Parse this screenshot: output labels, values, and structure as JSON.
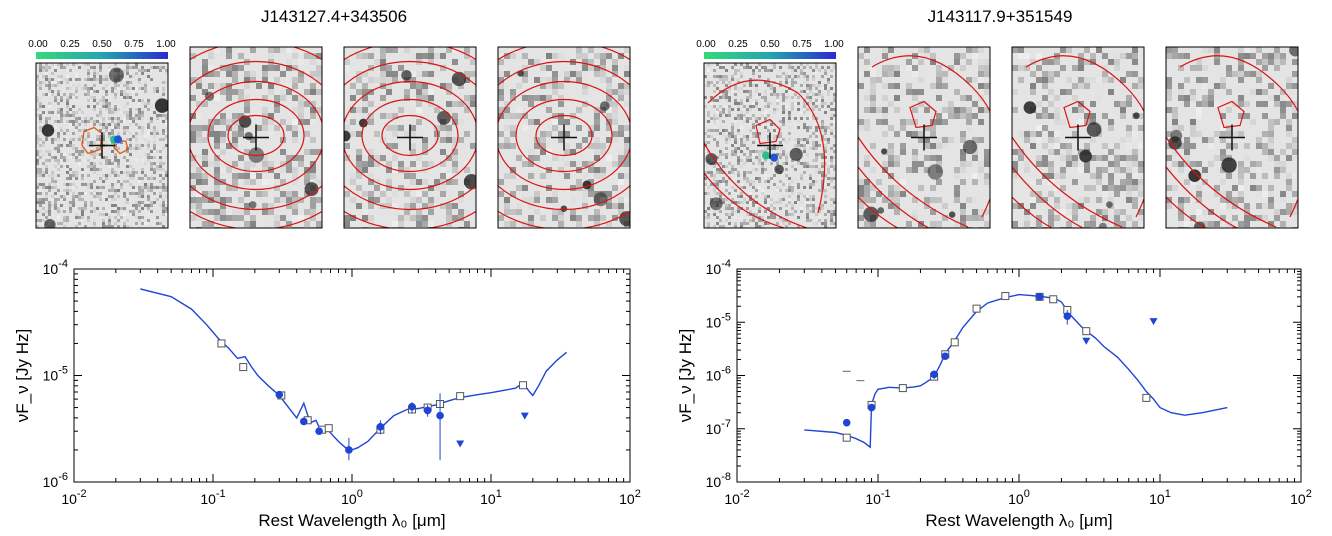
{
  "figure": {
    "panels": [
      {
        "id": "left",
        "title": "J143127.4+343506",
        "colorbar_ticks": [
          "0.00",
          "0.25",
          "0.50",
          "0.75",
          "1.00"
        ],
        "thumbnail_count": 4
      },
      {
        "id": "right",
        "title": "J143117.9+351549",
        "colorbar_ticks": [
          "0.00",
          "0.25",
          "0.50",
          "0.75",
          "1.00"
        ],
        "thumbnail_count": 4
      }
    ]
  },
  "chart_data": [
    {
      "type": "scatter",
      "title": "",
      "xlabel": "Rest Wavelength λ₀ [μm]",
      "ylabel": "νF_ν [Jy Hz]",
      "x_scale": "log",
      "y_scale": "log",
      "xlim": [
        0.01,
        100
      ],
      "ylim": [
        1e-06,
        0.0001
      ],
      "x_ticks": [
        "10^-2",
        "10^-1",
        "10^0",
        "10^1",
        "10^2"
      ],
      "y_ticks": [
        "10^-6",
        "10^-5",
        "10^-4"
      ],
      "model_curve": {
        "x": [
          0.03,
          0.05,
          0.07,
          0.09,
          0.11,
          0.13,
          0.15,
          0.17,
          0.19,
          0.21,
          0.25,
          0.3,
          0.35,
          0.4,
          0.45,
          0.5,
          0.55,
          0.6,
          0.65,
          0.7,
          0.8,
          0.9,
          1.0,
          1.1,
          1.3,
          1.6,
          2.0,
          2.5,
          3.0,
          4.0,
          5.0,
          6.0,
          8.0,
          10,
          12,
          15,
          17,
          19,
          20,
          22,
          25,
          30,
          35
        ],
        "y": [
          6.5e-05,
          5.5e-05,
          4.2e-05,
          3e-05,
          2.2e-05,
          1.8e-05,
          1.45e-05,
          1.5e-05,
          1.2e-05,
          1e-05,
          8e-06,
          6.5e-06,
          5e-06,
          4e-06,
          5.5e-06,
          3.6e-06,
          3.8e-06,
          3e-06,
          3.2e-06,
          2.9e-06,
          2.4e-06,
          2.1e-06,
          2e-06,
          2.1e-06,
          2.4e-06,
          3.2e-06,
          4.2e-06,
          4.8e-06,
          4.9e-06,
          5.3e-06,
          5.8e-06,
          6.2e-06,
          6.6e-06,
          6.9e-06,
          7.2e-06,
          7.6e-06,
          8.5e-06,
          7e-06,
          6.5e-06,
          8e-06,
          1.1e-05,
          1.4e-05,
          1.65e-05
        ]
      },
      "model_points": {
        "x": [
          0.115,
          0.165,
          0.31,
          0.48,
          0.61,
          0.68,
          1.6,
          2.7,
          3.5,
          4.3,
          6.0,
          17
        ],
        "y": [
          2e-05,
          1.2e-05,
          6.5e-06,
          3.8e-06,
          3.1e-06,
          3.2e-06,
          3.1e-06,
          4.8e-06,
          5e-06,
          5.4e-06,
          6.4e-06,
          8.1e-06
        ]
      },
      "observed": {
        "x": [
          0.3,
          0.45,
          0.58,
          0.95,
          1.6,
          2.7,
          3.5,
          4.3
        ],
        "y": [
          6.6e-06,
          3.7e-06,
          3e-06,
          2e-06,
          3.3e-06,
          5.1e-06,
          4.7e-06,
          4.2e-06
        ],
        "yerr_low": [
          6.3e-06,
          3.5e-06,
          2.8e-06,
          1.6e-06,
          2.8e-06,
          4.4e-06,
          4.1e-06,
          1.6e-06
        ],
        "yerr_high": [
          6.9e-06,
          3.9e-06,
          3.2e-06,
          2.6e-06,
          3.8e-06,
          5.6e-06,
          5.3e-06,
          6.8e-06
        ]
      },
      "upper_limits": {
        "x": [
          6.0,
          17.5
        ],
        "y": [
          2.3e-06,
          4.2e-06
        ]
      }
    },
    {
      "type": "scatter",
      "title": "",
      "xlabel": "Rest Wavelength λ₀ [μm]",
      "ylabel": "νF_ν [Jy Hz]",
      "x_scale": "log",
      "y_scale": "log",
      "xlim": [
        0.01,
        100
      ],
      "ylim": [
        1e-08,
        0.0001
      ],
      "x_ticks": [
        "10^-2",
        "10^-1",
        "10^0",
        "10^1",
        "10^2"
      ],
      "y_ticks": [
        "10^-8",
        "10^-7",
        "10^-6",
        "10^-5",
        "10^-4"
      ],
      "model_curve": {
        "x": [
          0.03,
          0.05,
          0.06,
          0.07,
          0.08,
          0.088,
          0.09,
          0.095,
          0.1,
          0.12,
          0.15,
          0.18,
          0.2,
          0.22,
          0.25,
          0.28,
          0.3,
          0.35,
          0.4,
          0.5,
          0.6,
          0.8,
          1.0,
          1.2,
          1.5,
          1.8,
          2.0,
          2.3,
          2.8,
          3.5,
          4.0,
          5.0,
          6.0,
          7.0,
          8.0,
          9.0,
          10,
          12,
          15,
          20,
          30
        ],
        "y": [
          9.5e-08,
          8.5e-08,
          7.5e-08,
          6.5e-08,
          5.5e-08,
          4.5e-08,
          2.8e-07,
          4.5e-07,
          5.5e-07,
          6e-07,
          5.8e-07,
          6.1e-07,
          6.4e-07,
          7.5e-07,
          9.5e-07,
          1.7e-06,
          2.6e-06,
          4.5e-06,
          8e-06,
          1.6e-05,
          2.3e-05,
          2.9e-05,
          3.3e-05,
          3.2e-05,
          3e-05,
          2.8e-05,
          2.4e-05,
          1.4e-05,
          8e-06,
          5e-06,
          3.5e-06,
          2.2e-06,
          1.3e-06,
          8e-07,
          5e-07,
          3.6e-07,
          2.5e-07,
          2e-07,
          1.8e-07,
          2e-07,
          2.5e-07
        ]
      },
      "model_points": {
        "x": [
          0.06,
          0.09,
          0.15,
          0.25,
          0.3,
          0.35,
          0.5,
          0.8,
          1.4,
          1.75,
          2.2,
          3.0,
          8.0
        ],
        "y": [
          6.8e-08,
          2.8e-07,
          5.8e-07,
          9.5e-07,
          2.5e-06,
          4.2e-06,
          1.8e-05,
          3.1e-05,
          3e-05,
          2.7e-05,
          1.7e-05,
          6.8e-06,
          3.8e-07
        ]
      },
      "observed": {
        "x": [
          0.06,
          0.09,
          0.25,
          0.3,
          1.4,
          2.2
        ],
        "y": [
          1.3e-07,
          2.5e-07,
          1.05e-06,
          2.3e-06,
          3e-05,
          1.3e-05
        ],
        "yerr_low": [
          1.3e-07,
          2.5e-07,
          8.5e-07,
          2e-06,
          2.8e-05,
          9e-06
        ],
        "yerr_high": [
          1.3e-07,
          2.5e-07,
          1.25e-06,
          2.6e-06,
          3.2e-05,
          1.7e-05
        ]
      },
      "upper_limits": {
        "x": [
          3.0,
          9.0
        ],
        "y": [
          4.5e-06,
          1.05e-05
        ]
      },
      "dash_markers": {
        "x": [
          0.06,
          0.075
        ],
        "y": [
          1.2e-06,
          8e-07
        ]
      }
    }
  ]
}
